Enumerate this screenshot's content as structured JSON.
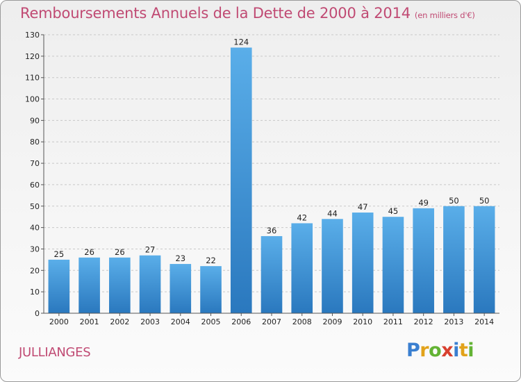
{
  "title": "Remboursements Annuels de la Dette de 2000 à 2014",
  "unit": "(en milliers d'€)",
  "commune": "JULLIANGES",
  "logo": {
    "letters": [
      {
        "ch": "P",
        "color": "#3a7fd0"
      },
      {
        "ch": "r",
        "color": "#e2a21a"
      },
      {
        "ch": "o",
        "color": "#63b334"
      },
      {
        "ch": "x",
        "color": "#d8402f"
      },
      {
        "ch": "i",
        "color": "#3a7fd0"
      },
      {
        "ch": "t",
        "color": "#e2a21a"
      },
      {
        "ch": "i",
        "color": "#63b334"
      }
    ]
  },
  "chart_data": {
    "type": "bar",
    "title": "Remboursements Annuels de la Dette de 2000 à 2014",
    "xlabel": "",
    "ylabel": "",
    "categories": [
      "2000",
      "2001",
      "2002",
      "2003",
      "2004",
      "2005",
      "2006",
      "2007",
      "2008",
      "2009",
      "2010",
      "2011",
      "2012",
      "2013",
      "2014"
    ],
    "values": [
      25,
      26,
      26,
      27,
      23,
      22,
      124,
      36,
      42,
      44,
      47,
      45,
      49,
      50,
      50
    ],
    "ylim": [
      0,
      130
    ],
    "yticks": [
      0,
      10,
      20,
      30,
      40,
      50,
      60,
      70,
      80,
      90,
      100,
      110,
      120,
      130
    ],
    "grid": "horizontal-dashed",
    "bar_color": "#3f96d9",
    "legend": "none"
  }
}
